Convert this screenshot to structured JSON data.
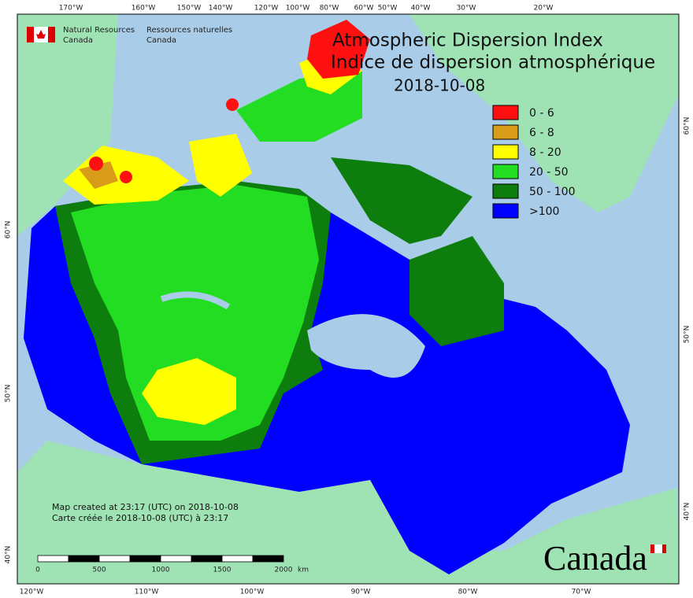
{
  "header": {
    "org_en": [
      "Natural Resources",
      "Canada"
    ],
    "org_fr": [
      "Ressources naturelles",
      "Canada"
    ]
  },
  "title": [
    "Atmospheric Dispersion Index",
    "Indice de dispersion atmosphérique"
  ],
  "date": "2018-10-08",
  "legend": [
    {
      "label": "0 - 6",
      "color": "#ff1010"
    },
    {
      "label": "6 - 8",
      "color": "#d89c18"
    },
    {
      "label": "8 - 20",
      "color": "#ffff00"
    },
    {
      "label": "20 - 50",
      "color": "#22dd22"
    },
    {
      "label": "50 - 100",
      "color": "#0d7d0d"
    },
    {
      "label": ">100",
      "color": "#0000ff"
    }
  ],
  "graticule": {
    "top": [
      "170°W",
      "160°W",
      "150°W",
      "140°W",
      "120°W",
      "100°W",
      "80°W",
      "60°W",
      "50°W",
      "40°W",
      "30°W",
      "20°W"
    ],
    "bottom": [
      "120°W",
      "110°W",
      "100°W",
      "90°W",
      "80°W",
      "70°W"
    ],
    "left": [
      "60°N",
      "50°N",
      "40°N"
    ],
    "right": [
      "60°N",
      "50°N",
      "40°N"
    ]
  },
  "footnote": [
    "Map created at 23:17 (UTC) on 2018-10-08",
    "Carte créée le 2018-10-08 (UTC) à 23:17"
  ],
  "scale": {
    "ticks": [
      "0",
      "500",
      "1000",
      "1500",
      "2000"
    ],
    "unit": "km"
  },
  "wordmark": "Canada"
}
